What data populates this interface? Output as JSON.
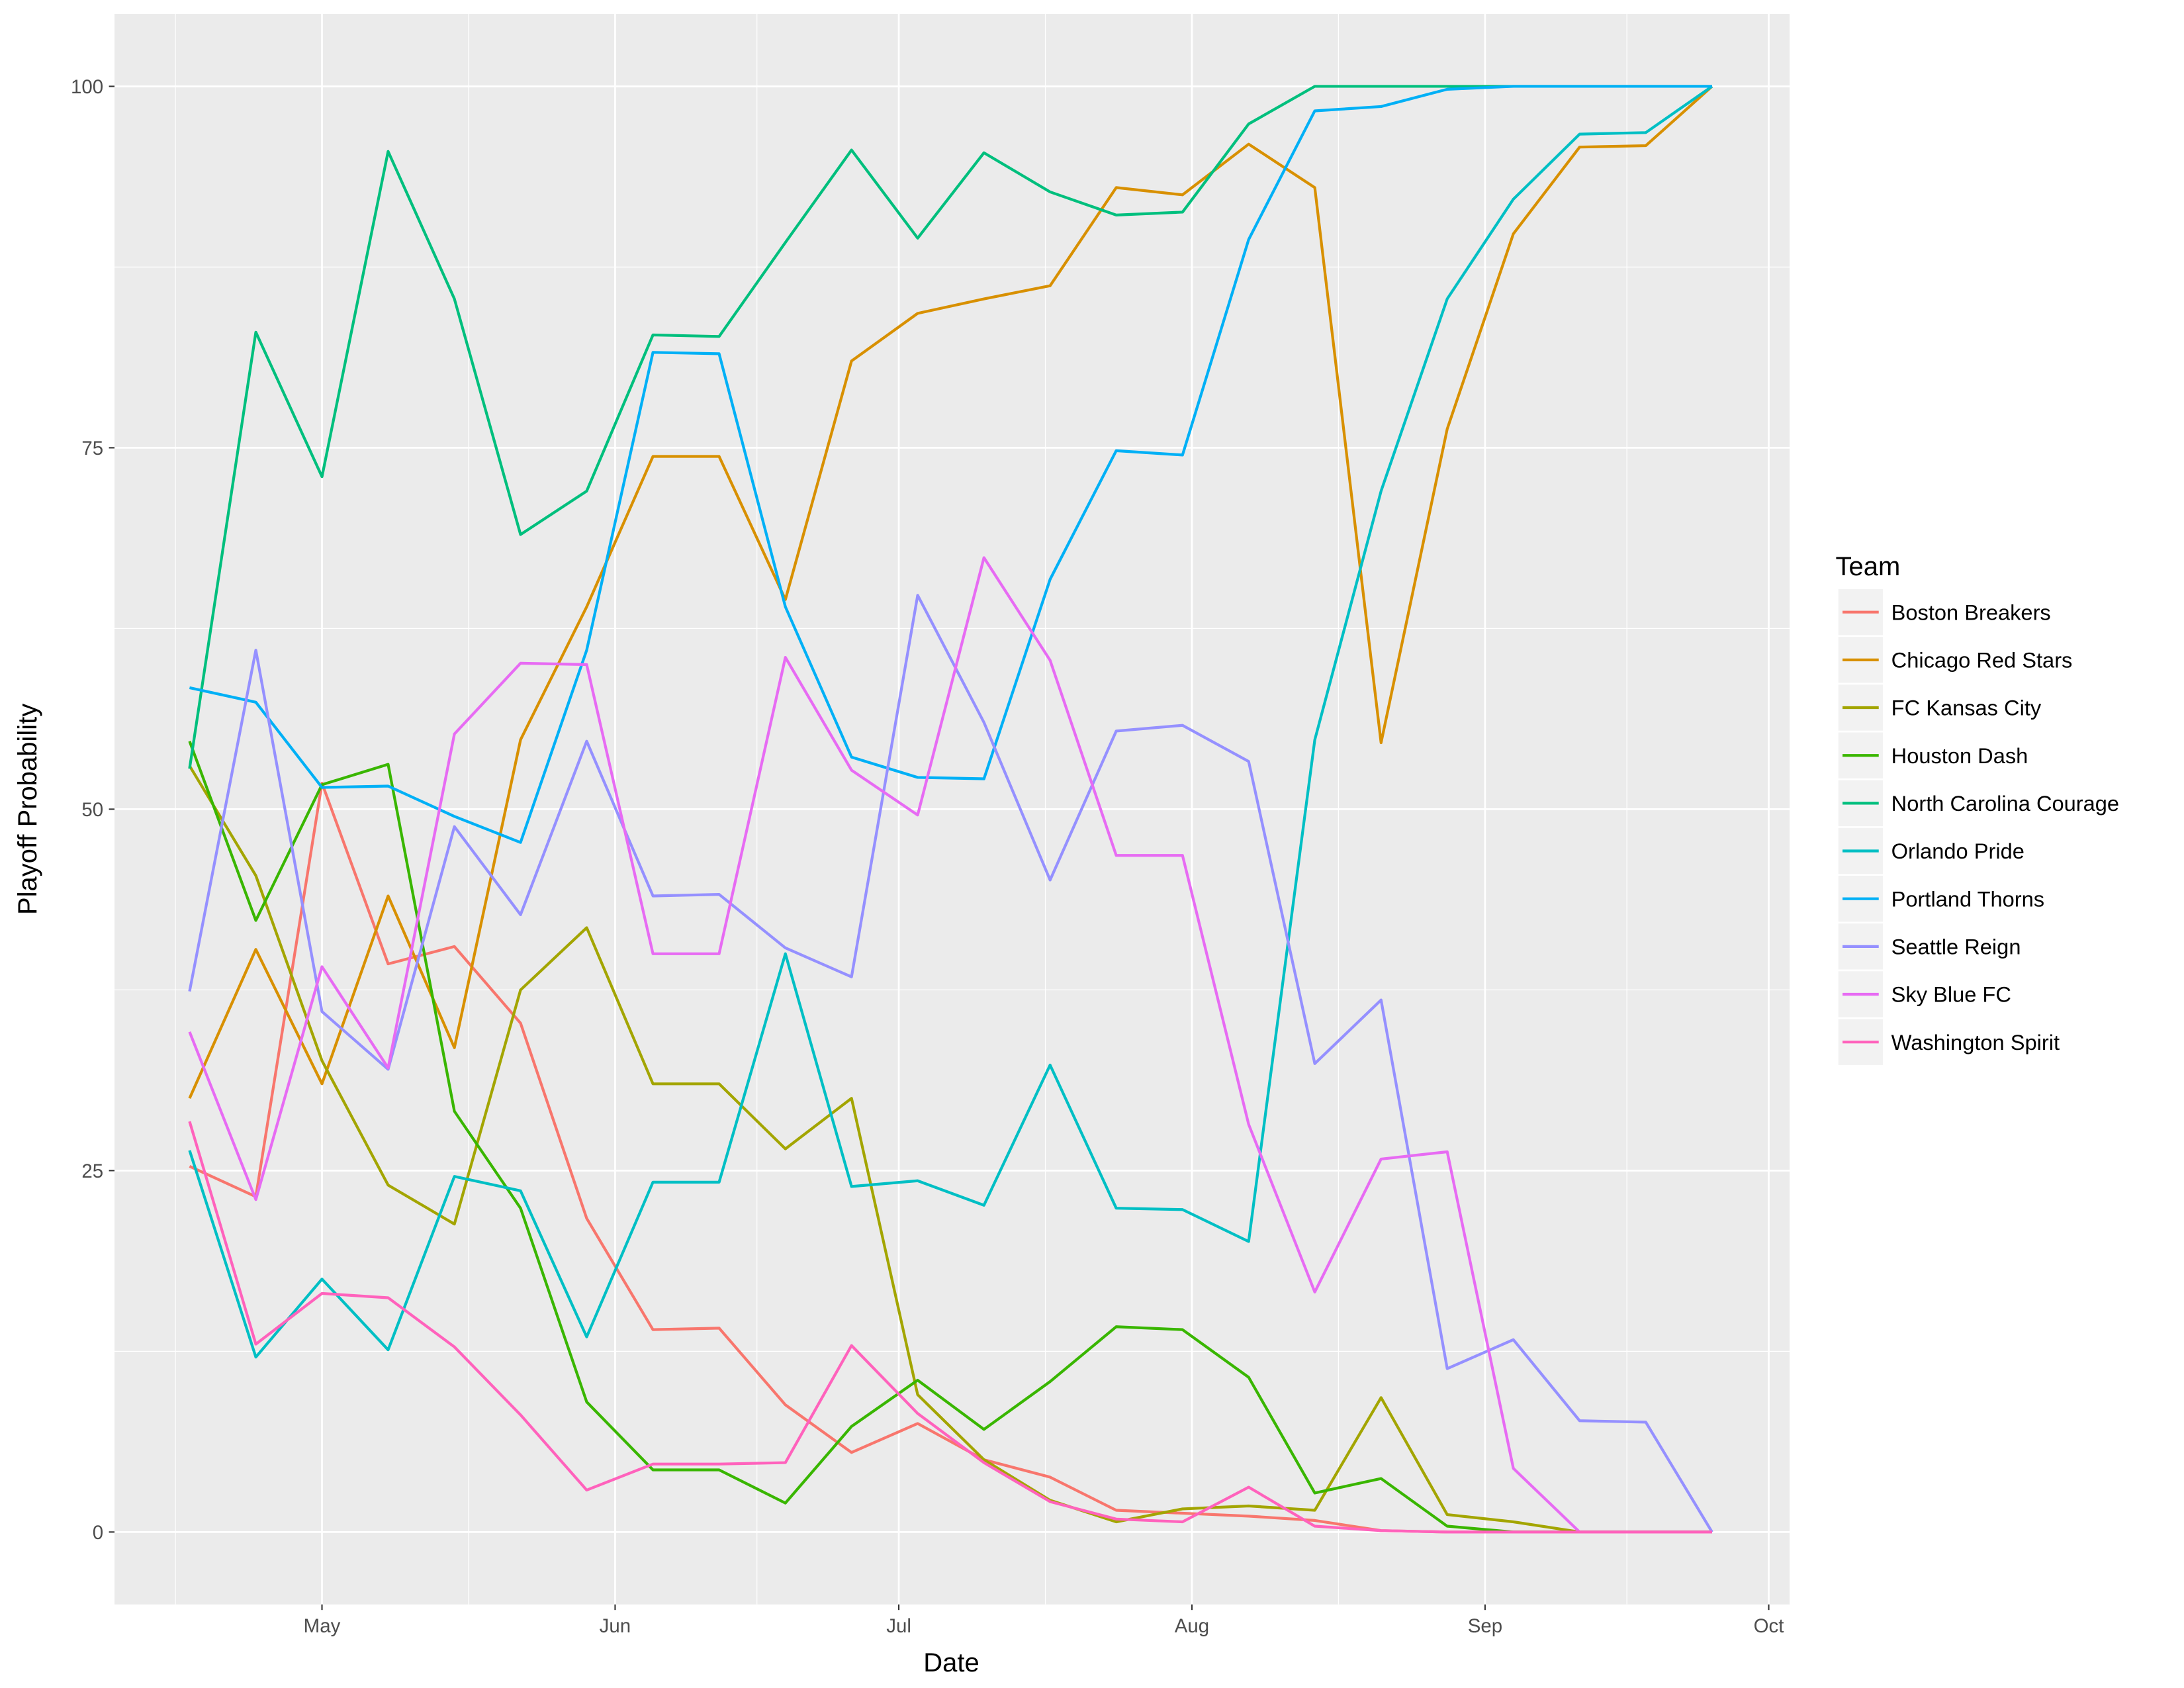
{
  "chart_data": {
    "type": "line",
    "xlabel": "Date",
    "ylabel": "Playoff Probability",
    "ylim": [
      -5,
      105
    ],
    "yticks": [
      0,
      25,
      50,
      75,
      100
    ],
    "ytick_labels": [
      "0",
      "25",
      "50",
      "75",
      "100"
    ],
    "xticks": [
      "05-01",
      "06-01",
      "07-01",
      "08-01",
      "09-01",
      "10-01"
    ],
    "xtick_labels": [
      "May",
      "Jun",
      "Jul",
      "Aug",
      "Sep",
      "Oct"
    ],
    "xlim": [
      "04-15",
      "10-03"
    ],
    "grid": true,
    "legend": {
      "title": "Team",
      "placement": "right"
    },
    "x": [
      "04-17",
      "04-24",
      "05-01",
      "05-08",
      "05-15",
      "05-22",
      "05-29",
      "06-05",
      "06-12",
      "06-19",
      "06-26",
      "07-03",
      "07-10",
      "07-17",
      "07-24",
      "07-31",
      "08-07",
      "08-14",
      "08-21",
      "08-28",
      "09-04",
      "09-11",
      "09-18",
      "09-25"
    ],
    "series": [
      {
        "name": "Boston Breakers",
        "color": "#F8766D",
        "values": [
          25.3,
          23.2,
          51.8,
          39.3,
          40.5,
          35.2,
          21.7,
          14.0,
          14.1,
          8.8,
          5.5,
          7.5,
          5.0,
          3.8,
          1.5,
          1.3,
          1.1,
          0.8,
          0.1,
          0,
          0,
          0,
          0,
          0
        ]
      },
      {
        "name": "Chicago Red Stars",
        "color": "#D89000",
        "values": [
          30.0,
          40.3,
          31.0,
          44.0,
          33.5,
          54.8,
          64.0,
          74.4,
          74.4,
          64.5,
          81.0,
          84.3,
          85.3,
          86.2,
          93.0,
          92.5,
          96.0,
          93.0,
          54.6,
          76.3,
          89.8,
          95.8,
          95.9,
          100
        ]
      },
      {
        "name": "FC Kansas City",
        "color": "#A3A500",
        "values": [
          53.0,
          45.4,
          32.6,
          24.0,
          21.3,
          37.5,
          41.8,
          31.0,
          31.0,
          26.5,
          30.0,
          9.5,
          5.0,
          2.2,
          0.7,
          1.6,
          1.8,
          1.5,
          9.3,
          1.2,
          0.7,
          0,
          0,
          0
        ]
      },
      {
        "name": "Houston Dash",
        "color": "#39B600",
        "values": [
          54.7,
          42.3,
          51.7,
          53.1,
          29.1,
          22.4,
          9.0,
          4.3,
          4.3,
          2.0,
          7.3,
          10.5,
          7.1,
          10.4,
          14.2,
          14.0,
          10.7,
          2.7,
          3.7,
          0.4,
          0,
          0,
          0,
          0
        ]
      },
      {
        "name": "North Carolina Courage",
        "color": "#00BF7D",
        "values": [
          52.8,
          83.0,
          73.0,
          95.5,
          85.3,
          69.0,
          72.0,
          82.8,
          82.7,
          89.2,
          95.6,
          89.5,
          95.4,
          92.7,
          91.1,
          91.3,
          97.4,
          100,
          100,
          100,
          100,
          100,
          100,
          100
        ]
      },
      {
        "name": "Orlando Pride",
        "color": "#00BFC4",
        "values": [
          26.4,
          12.1,
          17.5,
          12.6,
          24.6,
          23.6,
          13.5,
          24.2,
          24.2,
          40.0,
          23.9,
          24.3,
          22.6,
          32.3,
          22.4,
          22.3,
          20.1,
          54.8,
          72.0,
          85.3,
          92.2,
          96.7,
          96.8,
          100
        ]
      },
      {
        "name": "Portland Thorns",
        "color": "#00B0F6",
        "values": [
          58.4,
          57.4,
          51.5,
          51.6,
          49.5,
          47.7,
          61.0,
          81.6,
          81.5,
          64.0,
          53.6,
          52.2,
          52.1,
          65.9,
          74.8,
          74.5,
          89.4,
          98.3,
          98.6,
          99.8,
          100,
          100,
          100,
          100
        ]
      },
      {
        "name": "Seattle Reign",
        "color": "#9590FF",
        "values": [
          37.4,
          61.0,
          36.0,
          32.0,
          48.8,
          42.7,
          54.7,
          44.0,
          44.1,
          40.4,
          38.4,
          64.8,
          56.0,
          45.1,
          55.4,
          55.8,
          53.3,
          32.4,
          36.8,
          11.3,
          13.3,
          7.7,
          7.6,
          0
        ]
      },
      {
        "name": "Sky Blue FC",
        "color": "#E76BF3",
        "values": [
          34.6,
          23.0,
          39.1,
          32.1,
          55.2,
          60.1,
          60.0,
          40.0,
          40.0,
          60.5,
          52.7,
          49.6,
          67.4,
          60.3,
          46.8,
          46.8,
          28.2,
          16.6,
          25.8,
          26.3,
          4.4,
          0,
          0,
          0
        ]
      },
      {
        "name": "Washington Spirit",
        "color": "#FF62BC",
        "values": [
          28.4,
          13.0,
          16.5,
          16.2,
          12.8,
          8.1,
          2.9,
          4.7,
          4.7,
          4.8,
          12.9,
          8.2,
          4.8,
          2.1,
          0.9,
          0.7,
          3.1,
          0.4,
          0.1,
          0,
          0,
          0,
          0,
          0
        ]
      }
    ]
  }
}
